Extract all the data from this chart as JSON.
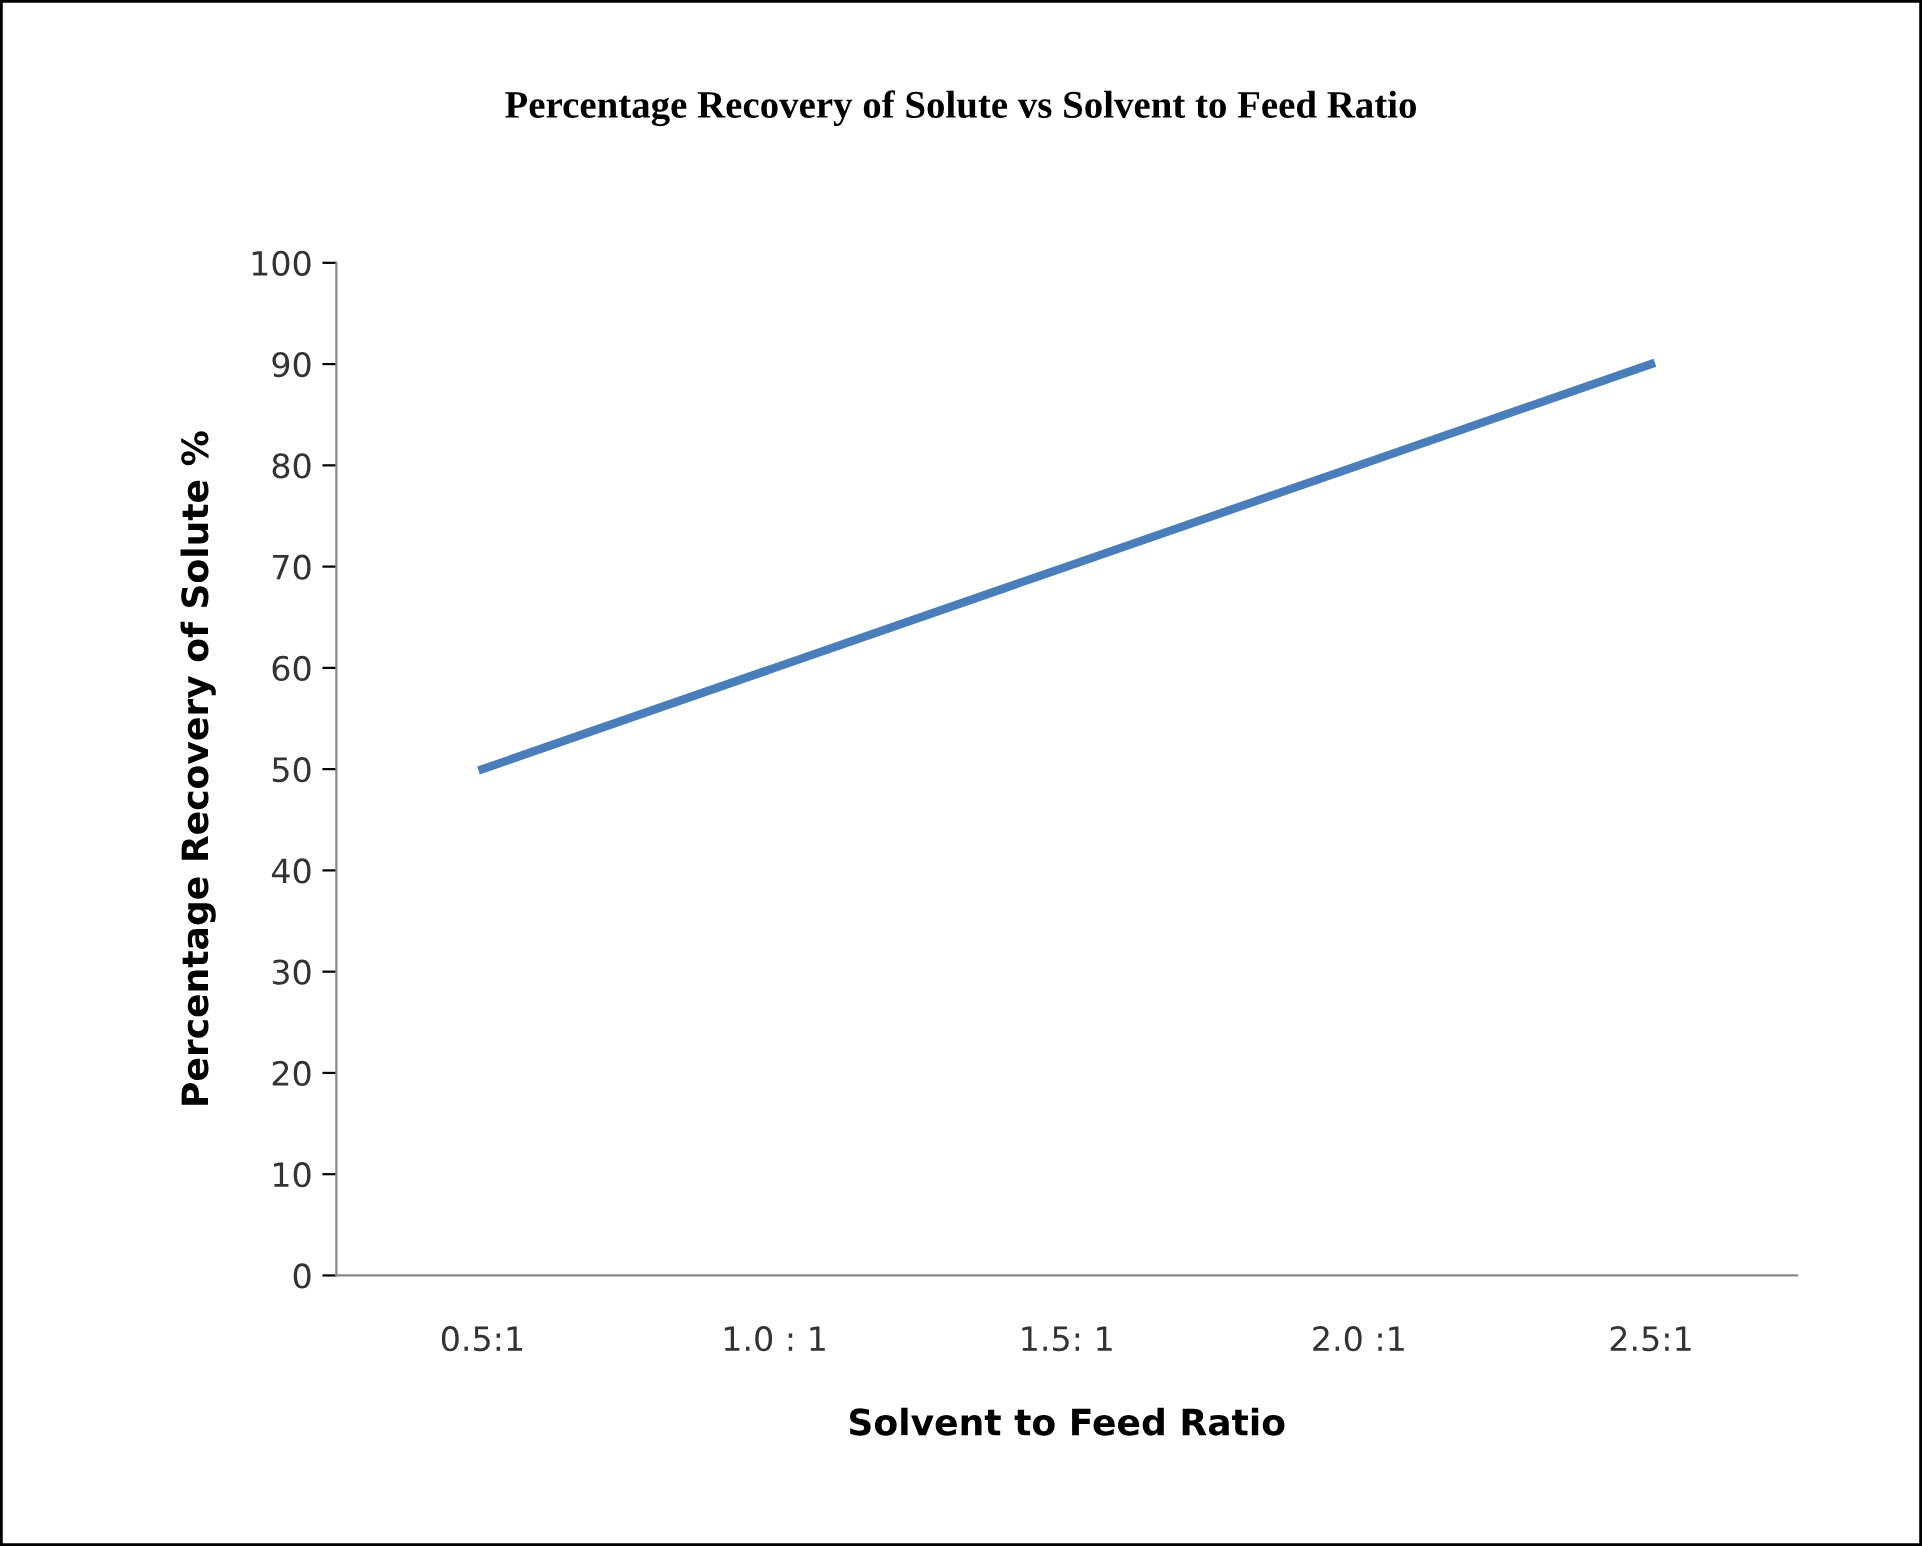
{
  "chart_data": {
    "type": "line",
    "title": "Percentage Recovery of Solute vs Solvent to Feed Ratio",
    "xlabel": "Solvent to Feed Ratio",
    "ylabel": "Percentage Recovery of Solute %",
    "categories": [
      "0.5:1",
      "1.0 : 1",
      "1.5: 1",
      "2.0 :1",
      "2.5:1"
    ],
    "series": [
      {
        "color": "#4a7ebb",
        "values": [
          50,
          60,
          70,
          80,
          90
        ]
      }
    ],
    "ylim": [
      0,
      100
    ],
    "yticks": [
      0,
      10,
      20,
      30,
      40,
      50,
      60,
      70,
      80,
      90,
      100
    ],
    "grid": false,
    "marker": "none",
    "line_style": "solid"
  }
}
